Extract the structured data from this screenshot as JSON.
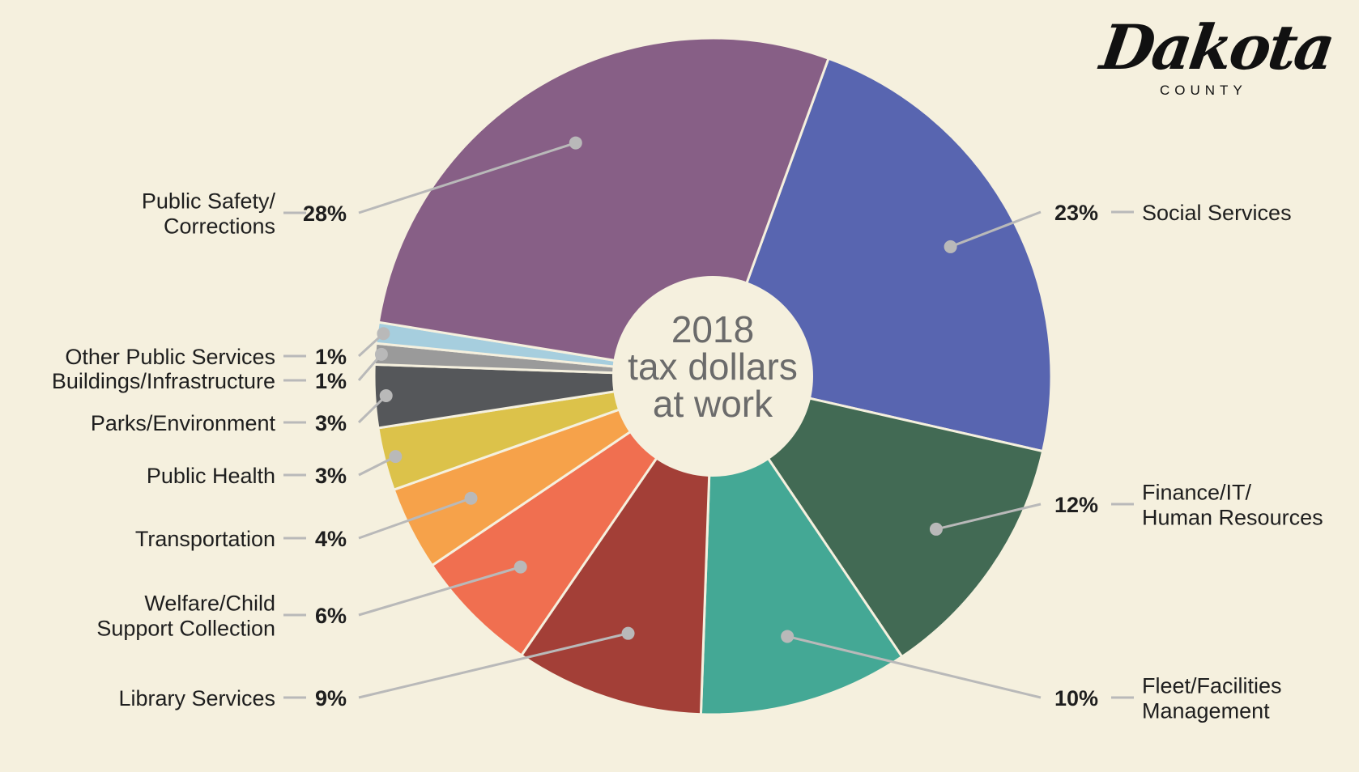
{
  "chart_data": {
    "type": "pie",
    "title": "2018 tax dollars at work",
    "center_label_lines": [
      "2018",
      "tax dollars",
      "at work"
    ],
    "slices": [
      {
        "label": "Social Services",
        "label_lines": [
          "Social Services"
        ],
        "pct_text": "23%",
        "value": 23,
        "color": "#5865b0"
      },
      {
        "label": "Finance/IT/ Human Resources",
        "label_lines": [
          "Finance/IT/",
          "Human Resources"
        ],
        "pct_text": "12%",
        "value": 12,
        "color": "#426a54"
      },
      {
        "label": "Fleet/Facilities Management",
        "label_lines": [
          "Fleet/Facilities",
          "Management"
        ],
        "pct_text": "10%",
        "value": 10,
        "color": "#44a895"
      },
      {
        "label": "Library Services",
        "label_lines": [
          "Library Services"
        ],
        "pct_text": "9%",
        "value": 9,
        "color": "#a33f37"
      },
      {
        "label": "Welfare/Child Support Collection",
        "label_lines": [
          "Welfare/Child",
          "Support Collection"
        ],
        "pct_text": "6%",
        "value": 6,
        "color": "#f06f50"
      },
      {
        "label": "Transportation",
        "label_lines": [
          "Transportation"
        ],
        "pct_text": "4%",
        "value": 4,
        "color": "#f6a24a"
      },
      {
        "label": "Public Health",
        "label_lines": [
          "Public Health"
        ],
        "pct_text": "3%",
        "value": 3,
        "color": "#dcc24a"
      },
      {
        "label": "Parks/Environment",
        "label_lines": [
          "Parks/Environment"
        ],
        "pct_text": "3%",
        "value": 3,
        "color": "#55575a"
      },
      {
        "label": "Buildings/Infrastructure",
        "label_lines": [
          "Buildings/Infrastructure"
        ],
        "pct_text": "1%",
        "value": 1,
        "color": "#9a9a9a"
      },
      {
        "label": "Other Public Services",
        "label_lines": [
          "Other Public Services"
        ],
        "pct_text": "1%",
        "value": 1,
        "color": "#a6cede"
      },
      {
        "label": "Public Safety/ Corrections",
        "label_lines": [
          "Public Safety/",
          "Corrections"
        ],
        "pct_text": "28%",
        "value": 28,
        "color": "#875f86"
      }
    ]
  },
  "logo": {
    "name": "Dakota",
    "sub": "COUNTY"
  },
  "colors": {
    "background": "#f5f0de",
    "text": "#1e1e1e",
    "leader": "#b9b9b9",
    "center_text": "#6b6b6b"
  }
}
